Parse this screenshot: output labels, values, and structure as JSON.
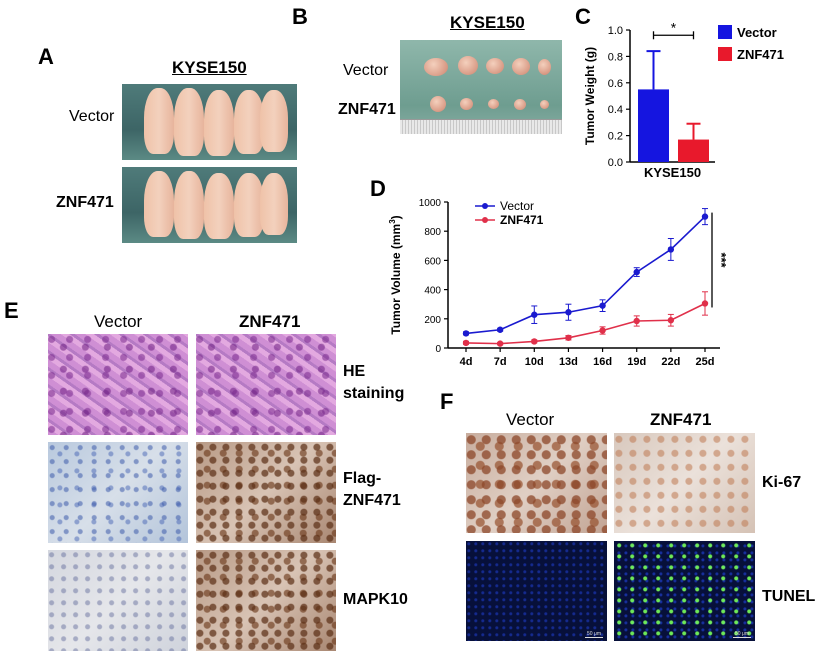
{
  "panels": {
    "A": {
      "letter": "A",
      "title": "KYSE150",
      "row_labels": [
        "Vector",
        "ZNF471"
      ]
    },
    "B": {
      "letter": "B",
      "title": "KYSE150",
      "row_labels": [
        "Vector",
        "ZNF471"
      ]
    },
    "C": {
      "letter": "C"
    },
    "D": {
      "letter": "D"
    },
    "E": {
      "letter": "E",
      "col_labels": [
        "Vector",
        "ZNF471"
      ],
      "row_labels": [
        "HE\nstaining",
        "Flag-\nZNF471",
        "MAPK10"
      ]
    },
    "F": {
      "letter": "F",
      "col_labels": [
        "Vector",
        "ZNF471"
      ],
      "row_labels": [
        "Ki-67",
        "TUNEL"
      ],
      "scale_text": "50 μm"
    }
  },
  "colors": {
    "vector": "#1515e0",
    "znf471": "#e8192c",
    "vector_line": "#1a1acf",
    "znf471_line": "#e0304a"
  },
  "chart_data": [
    {
      "type": "bar",
      "panel": "C",
      "categories": [
        "KYSE150"
      ],
      "series": [
        {
          "name": "Vector",
          "values": [
            0.55
          ],
          "error": [
            0.29
          ]
        },
        {
          "name": "ZNF471",
          "values": [
            0.17
          ],
          "error": [
            0.12
          ]
        }
      ],
      "ylabel": "Tumor Weight (g)",
      "ylim": [
        0,
        1.0
      ],
      "yticks": [
        "0.0",
        "0.2",
        "0.4",
        "0.6",
        "0.8",
        "1.0"
      ],
      "significance": "*",
      "legend": "right"
    },
    {
      "type": "line",
      "panel": "D",
      "categories": [
        "4d",
        "7d",
        "10d",
        "13d",
        "16d",
        "19d",
        "22d",
        "25d"
      ],
      "series": [
        {
          "name": "Vector",
          "values": [
            100,
            125,
            228,
            245,
            290,
            520,
            675,
            900
          ],
          "error": [
            10,
            10,
            60,
            55,
            40,
            30,
            75,
            55
          ]
        },
        {
          "name": "ZNF471",
          "values": [
            35,
            30,
            45,
            70,
            120,
            185,
            190,
            305
          ],
          "error": [
            10,
            8,
            10,
            15,
            25,
            35,
            40,
            80
          ]
        }
      ],
      "ylabel": "Tumor Volume (mm",
      "ylabel_sup": "3",
      "ylabel_end": ")",
      "ylim": [
        0,
        1000
      ],
      "yticks": [
        "0",
        "200",
        "400",
        "600",
        "800",
        "1000"
      ],
      "significance": "***",
      "legend": "top-left"
    }
  ]
}
